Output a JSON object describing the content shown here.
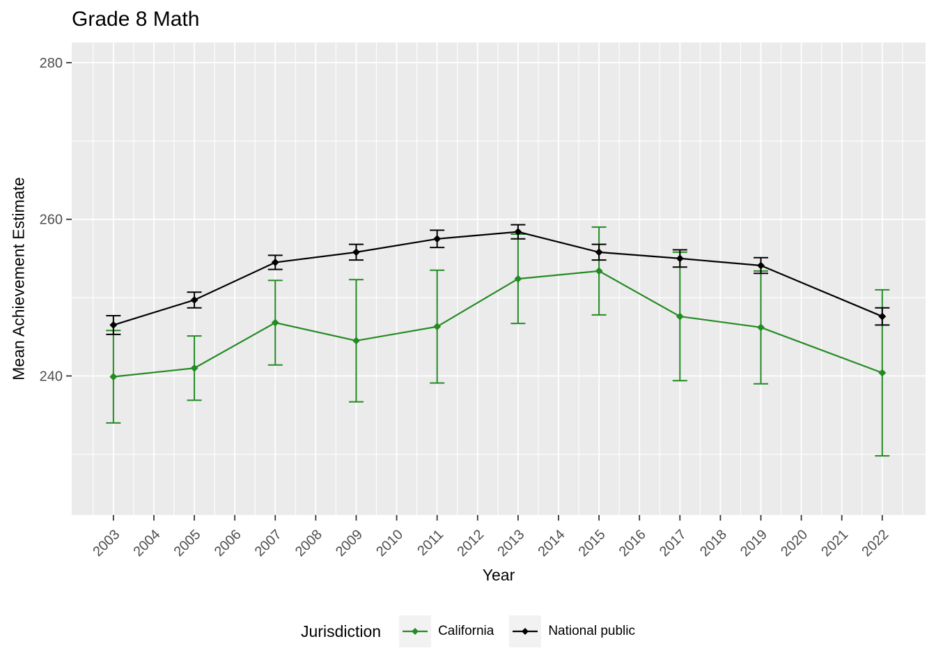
{
  "chart_data": {
    "type": "line",
    "title": "Grade 8 Math",
    "xlabel": "Year",
    "ylabel": "Mean Achievement Estimate",
    "legend": {
      "title": "Jurisdiction",
      "position": "bottom"
    },
    "x_tick_labels": [
      "2003",
      "2004",
      "2005",
      "2006",
      "2007",
      "2008",
      "2009",
      "2010",
      "2011",
      "2012",
      "2013",
      "2014",
      "2015",
      "2016",
      "2017",
      "2018",
      "2019",
      "2020",
      "2021",
      "2022"
    ],
    "y_tick_labels": [
      "240",
      "260",
      "280"
    ],
    "y_minor_gridlines": [
      230,
      250,
      270
    ],
    "x_minor_gridlines_start": 2002.5,
    "x_minor_gridlines_end": 2022.5,
    "xlim": [
      2001.97,
      2023.07
    ],
    "ylim": [
      222.25,
      282.57
    ],
    "x": [
      2003,
      2005,
      2007,
      2009,
      2011,
      2013,
      2015,
      2017,
      2019,
      2022
    ],
    "series": [
      {
        "name": "California",
        "color": "#228B22",
        "values": [
          239.9,
          241.0,
          246.8,
          244.5,
          246.3,
          252.4,
          253.4,
          247.6,
          246.2,
          240.4
        ],
        "error": [
          5.9,
          4.1,
          5.4,
          7.8,
          7.2,
          5.7,
          5.6,
          8.2,
          7.2,
          10.6
        ]
      },
      {
        "name": "National public",
        "color": "#000000",
        "values": [
          246.5,
          249.7,
          254.5,
          255.8,
          257.5,
          258.4,
          255.8,
          255.0,
          254.1,
          247.6
        ],
        "error": [
          1.2,
          1.0,
          0.9,
          1.0,
          1.1,
          0.9,
          1.0,
          1.1,
          1.0,
          1.1
        ]
      }
    ],
    "colors": {
      "panel_background": "#EBEBEB",
      "gridline": "#FFFFFF",
      "tick_text": "#4D4D4D",
      "tick_mark": "#333333",
      "legend_key_background": "#F2F2F2"
    }
  }
}
